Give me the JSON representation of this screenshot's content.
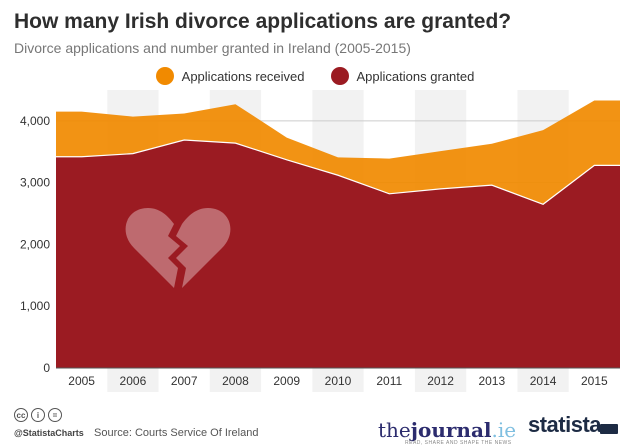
{
  "header": {
    "title": "How many Irish divorce applications are granted?",
    "subtitle": "Divorce applications and number granted in Ireland (2005-2015)"
  },
  "colors": {
    "received": "#f18a00",
    "granted": "#9b1b22",
    "band": "#f2f2f2",
    "grid": "#cccccc"
  },
  "chart_data": {
    "type": "area",
    "x": [
      "2005",
      "2006",
      "2007",
      "2008",
      "2009",
      "2010",
      "2011",
      "2012",
      "2013",
      "2014",
      "2015"
    ],
    "series": [
      {
        "name": "Applications received",
        "color": "#f18a00",
        "values": [
          4150,
          4070,
          4120,
          4270,
          3730,
          3410,
          3390,
          3510,
          3630,
          3850,
          4330
        ]
      },
      {
        "name": "Applications granted",
        "color": "#9b1b22",
        "values": [
          3420,
          3470,
          3690,
          3640,
          3370,
          3120,
          2820,
          2900,
          2960,
          2650,
          3280
        ]
      }
    ],
    "yticks": [
      "0",
      "1,000",
      "2,000",
      "3,000",
      "4,000"
    ],
    "ylim": [
      0,
      4500
    ],
    "legend_position": "top-center",
    "grid": true,
    "decoration": "broken-heart-icon"
  },
  "footer": {
    "handle": "@StatistaCharts",
    "source": "Source: Courts Service Of Ireland",
    "journal_the": "the",
    "journal_j": "journal",
    "journal_ie": ".ie",
    "journal_tagline": "READ, SHARE AND SHAPE THE NEWS",
    "brand": "statista",
    "cc_icons": [
      "cc",
      "i",
      "="
    ]
  }
}
